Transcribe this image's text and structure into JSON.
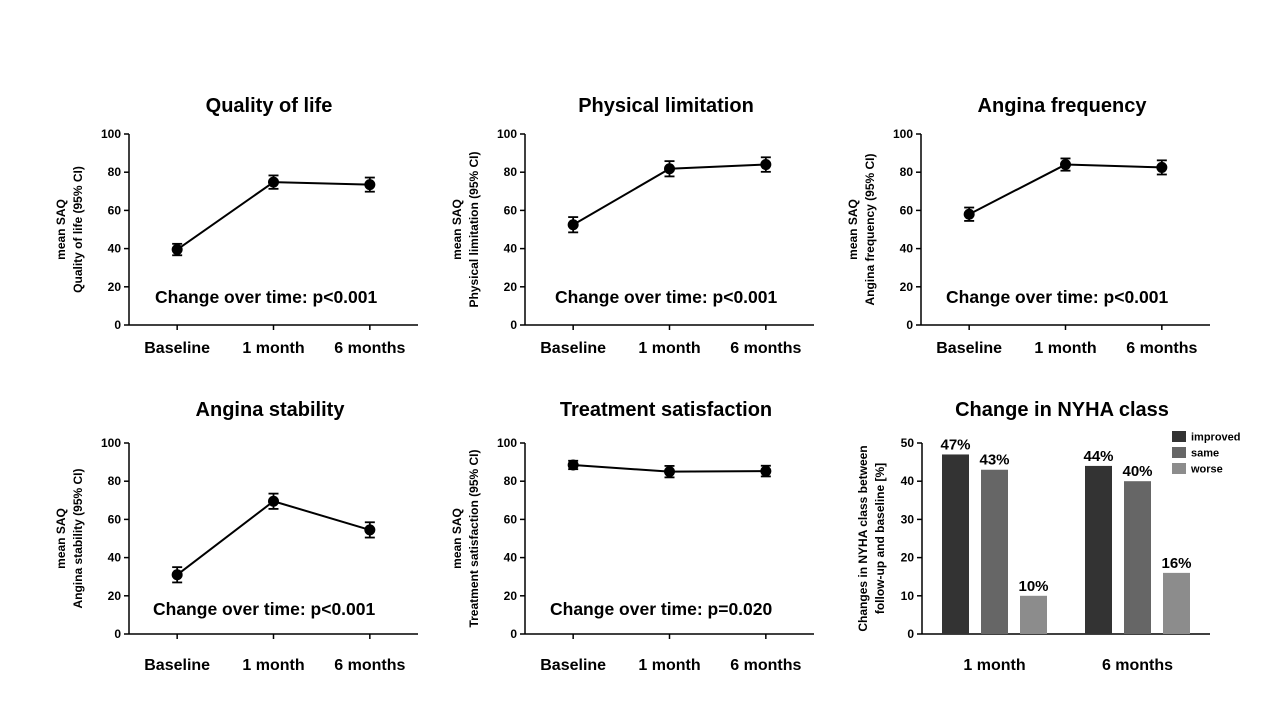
{
  "chart_data": [
    {
      "type": "line",
      "title": "Quality of life",
      "ylabel": [
        "mean SAQ",
        "Quality of life (95% CI)"
      ],
      "categories": [
        "Baseline",
        "1 month",
        "6 months"
      ],
      "series": [
        {
          "values": [
            39.5,
            74.8,
            73.5
          ],
          "ci_low": [
            36.5,
            71.3,
            69.8
          ],
          "ci_high": [
            42.5,
            78.3,
            77.2
          ]
        }
      ],
      "ylim": [
        0,
        100
      ],
      "yticks": [
        0,
        20,
        40,
        60,
        80,
        100
      ],
      "annotation": "Change over time: p<0.001"
    },
    {
      "type": "line",
      "title": "Physical limitation",
      "ylabel": [
        "mean SAQ",
        "Physical limitation (95% CI)"
      ],
      "categories": [
        "Baseline",
        "1 month",
        "6 months"
      ],
      "series": [
        {
          "values": [
            52.5,
            81.8,
            84.0
          ],
          "ci_low": [
            48.5,
            77.8,
            80.2
          ],
          "ci_high": [
            56.5,
            85.8,
            87.8
          ]
        }
      ],
      "ylim": [
        0,
        100
      ],
      "yticks": [
        0,
        20,
        40,
        60,
        80,
        100
      ],
      "annotation": "Change over time: p<0.001"
    },
    {
      "type": "line",
      "title": "Angina frequency",
      "ylabel": [
        "mean SAQ",
        "Angina frequency (95% CI)"
      ],
      "categories": [
        "Baseline",
        "1 month",
        "6 months"
      ],
      "series": [
        {
          "values": [
            58.0,
            84.0,
            82.5
          ],
          "ci_low": [
            54.5,
            80.8,
            78.8
          ],
          "ci_high": [
            61.5,
            87.2,
            86.2
          ]
        }
      ],
      "ylim": [
        0,
        100
      ],
      "yticks": [
        0,
        20,
        40,
        60,
        80,
        100
      ],
      "annotation": "Change over time: p<0.001"
    },
    {
      "type": "line",
      "title": "Angina stability",
      "ylabel": [
        "mean SAQ",
        "Angina stability (95% CI)"
      ],
      "categories": [
        "Baseline",
        "1 month",
        "6 months"
      ],
      "series": [
        {
          "values": [
            31.0,
            69.5,
            54.5
          ],
          "ci_low": [
            27.0,
            65.5,
            50.5
          ],
          "ci_high": [
            35.0,
            73.5,
            58.5
          ]
        }
      ],
      "ylim": [
        0,
        100
      ],
      "yticks": [
        0,
        20,
        40,
        60,
        80,
        100
      ],
      "annotation": "Change over time: p<0.001"
    },
    {
      "type": "line",
      "title": "Treatment satisfaction",
      "ylabel": [
        "mean SAQ",
        "Treatment satisfaction (95% CI)"
      ],
      "categories": [
        "Baseline",
        "1 month",
        "6 months"
      ],
      "series": [
        {
          "values": [
            88.5,
            85.0,
            85.3
          ],
          "ci_low": [
            86.3,
            82.0,
            82.5
          ],
          "ci_high": [
            90.7,
            88.0,
            88.1
          ]
        }
      ],
      "ylim": [
        0,
        100
      ],
      "yticks": [
        0,
        20,
        40,
        60,
        80,
        100
      ],
      "annotation": "Change over time: p=0.020"
    },
    {
      "type": "bar",
      "title": "Change in NYHA class",
      "ylabel": [
        "Changes in NYHA class between",
        "follow-up and baseline [%]"
      ],
      "categories": [
        "1 month",
        "6 months"
      ],
      "series": [
        {
          "name": "improved",
          "values": [
            47,
            44
          ],
          "labels": [
            "47%",
            "44%"
          ],
          "color": "#333333"
        },
        {
          "name": "same",
          "values": [
            43,
            40
          ],
          "labels": [
            "43%",
            "40%"
          ],
          "color": "#666666"
        },
        {
          "name": "worse",
          "values": [
            10,
            16
          ],
          "labels": [
            "10%",
            "16%"
          ],
          "color": "#8c8c8c"
        }
      ],
      "ylim": [
        0,
        50
      ],
      "yticks": [
        0,
        10,
        20,
        30,
        40,
        50
      ],
      "legend": "top-right"
    }
  ]
}
